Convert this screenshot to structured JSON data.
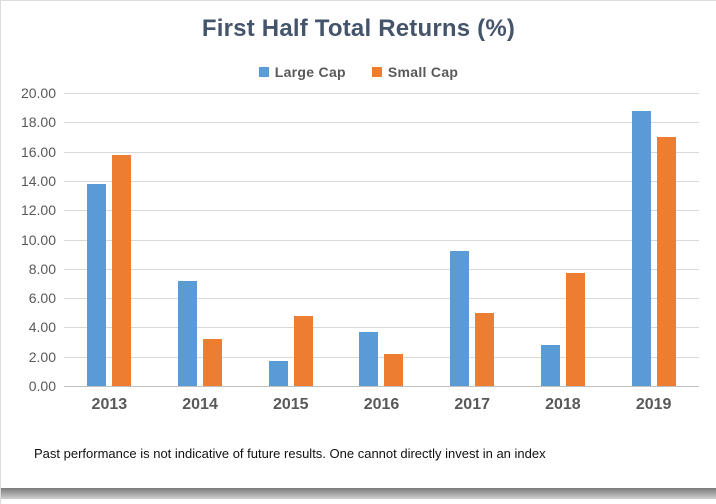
{
  "page": {
    "footer": "Past performance is not indicative of future results. One cannot directly invest in an index"
  },
  "chart_data": {
    "type": "bar",
    "title": "First Half Total Returns (%)",
    "categories": [
      "2013",
      "2014",
      "2015",
      "2016",
      "2017",
      "2018",
      "2019"
    ],
    "series": [
      {
        "name": "Large Cap",
        "color": "#5B9BD5",
        "values": [
          13.8,
          7.2,
          1.7,
          3.7,
          9.2,
          2.8,
          18.8
        ]
      },
      {
        "name": "Small Cap",
        "color": "#ED7D31",
        "values": [
          15.8,
          3.2,
          4.8,
          2.2,
          5.0,
          7.7,
          17.0
        ]
      }
    ],
    "ylim": [
      0,
      20
    ],
    "ytick_step": 2,
    "ytick_labels": [
      "20.00",
      "18.00",
      "16.00",
      "14.00",
      "12.00",
      "10.00",
      "8.00",
      "6.00",
      "4.00",
      "2.00",
      "0.00"
    ],
    "grid": true,
    "legend_position": "top-center",
    "styles": {
      "title_color": "#44546A",
      "tick_color": "#595959",
      "grid_color": "#D9D9D9",
      "axis_color": "#BFBFBF",
      "footer_color": "#111111"
    }
  }
}
